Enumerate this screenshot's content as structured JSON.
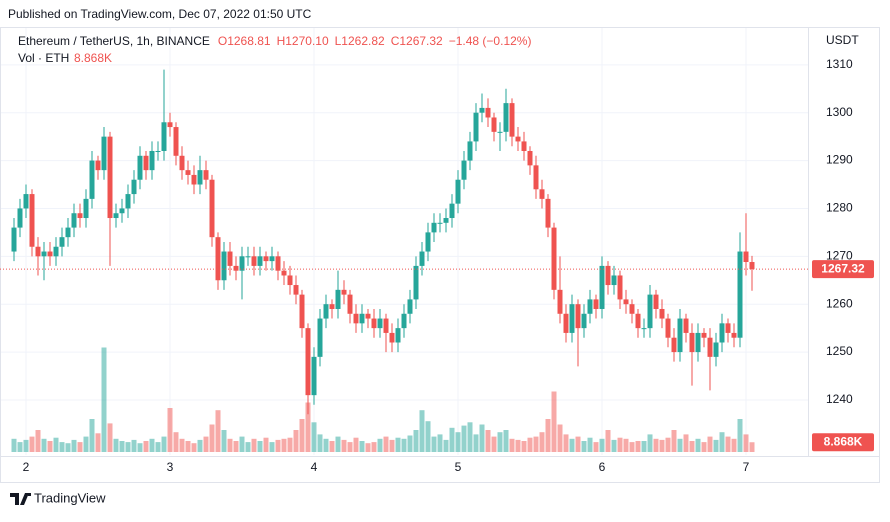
{
  "header": {
    "published": "Published on TradingView.com, Dec 07, 2022 01:50 UTC"
  },
  "chart_data": {
    "type": "candlestick",
    "symbol": "Ethereum / TetherUS, 1h, BINANCE",
    "ohlc_text": [
      "O1268.81",
      "H1270.10",
      "L1262.82",
      "C1267.32",
      "−1.48 (−0.12%)"
    ],
    "volume_title": "Vol · ETH",
    "y_axis_title": "USDT",
    "up_color": "#26a69a",
    "down_color": "#ef5350",
    "grid": true,
    "ylim": [
      1228.5,
      1317.9
    ],
    "yticks": [
      1240,
      1250,
      1260,
      1270,
      1280,
      1290,
      1300,
      1310
    ],
    "volume_lim": [
      0,
      100000
    ],
    "last_price": 1267.32,
    "last_volume": {
      "value": 8868,
      "label": "8.868K"
    },
    "categories": [
      null,
      null,
      "2",
      null,
      null,
      null,
      null,
      null,
      null,
      null,
      null,
      null,
      null,
      null,
      null,
      null,
      null,
      null,
      null,
      null,
      null,
      null,
      null,
      null,
      null,
      null,
      "3",
      null,
      null,
      null,
      null,
      null,
      null,
      null,
      null,
      null,
      null,
      null,
      null,
      null,
      null,
      null,
      null,
      null,
      null,
      null,
      null,
      null,
      null,
      null,
      "4",
      null,
      null,
      null,
      null,
      null,
      null,
      null,
      null,
      null,
      null,
      null,
      null,
      null,
      null,
      null,
      null,
      null,
      null,
      null,
      null,
      null,
      null,
      null,
      "5",
      null,
      null,
      null,
      null,
      null,
      null,
      null,
      null,
      null,
      null,
      null,
      null,
      null,
      null,
      null,
      null,
      null,
      null,
      null,
      null,
      null,
      null,
      null,
      "6",
      null,
      null,
      null,
      null,
      null,
      null,
      null,
      null,
      null,
      null,
      null,
      null,
      null,
      null,
      null,
      null,
      null,
      null,
      null,
      null,
      null,
      null,
      null,
      "7",
      null
    ],
    "open": [
      1271,
      1276,
      1280,
      1283,
      1272,
      1270,
      1271,
      1270,
      1272,
      1274,
      1276,
      1279,
      1278,
      1282,
      1290,
      1288,
      1295,
      1278,
      1279,
      1280,
      1283,
      1286,
      1291,
      1288,
      1292,
      1292,
      1298,
      1297,
      1291,
      1288,
      1287,
      1285,
      1288,
      1286,
      1274,
      1265,
      1271,
      1268,
      1267,
      1270,
      1270,
      1268,
      1270,
      1269,
      1270,
      1267,
      1266,
      1264,
      1262,
      1255,
      1241,
      1249,
      1257,
      1260,
      1259,
      1263,
      1262,
      1258,
      1256,
      1258,
      1257,
      1255,
      1257,
      1254,
      1252,
      1255,
      1258,
      1261,
      1268,
      1271,
      1275,
      1277,
      1277,
      1278,
      1281,
      1286,
      1290,
      1294,
      1300,
      1301,
      1299,
      1296,
      1296,
      1302,
      1295,
      1294,
      1292,
      1289,
      1284,
      1282,
      1276,
      1263,
      1258,
      1254,
      1260,
      1255,
      1258,
      1261,
      1259,
      1268,
      1264,
      1266,
      1261,
      1260,
      1258,
      1255,
      1255,
      1262,
      1259,
      1257,
      1253,
      1250,
      1257,
      1254,
      1250,
      1254,
      1253,
      1249,
      1252,
      1256,
      1254,
      1253,
      1271,
      1268.81
    ],
    "high": [
      1278,
      1282,
      1285,
      1284,
      1274,
      1273,
      1273,
      1274,
      1276,
      1278,
      1281,
      1281,
      1284,
      1292,
      1291,
      1297,
      1296,
      1281,
      1282,
      1285,
      1288,
      1293,
      1292,
      1294,
      1294,
      1309,
      1300,
      1298,
      1293,
      1290,
      1289,
      1291,
      1290,
      1287,
      1275,
      1273,
      1273,
      1270,
      1272,
      1272,
      1272,
      1272,
      1271,
      1272,
      1271,
      1269,
      1268,
      1266,
      1263,
      1256,
      1251,
      1259,
      1262,
      1261,
      1267,
      1265,
      1263,
      1260,
      1260,
      1259,
      1259,
      1259,
      1258,
      1256,
      1257,
      1260,
      1263,
      1270,
      1273,
      1277,
      1279,
      1279,
      1280,
      1283,
      1288,
      1292,
      1296,
      1302,
      1304,
      1303,
      1300,
      1298,
      1305,
      1303,
      1297,
      1296,
      1293,
      1291,
      1286,
      1283,
      1277,
      1270,
      1260,
      1262,
      1261,
      1260,
      1263,
      1262,
      1270,
      1269,
      1268,
      1267,
      1263,
      1261,
      1259,
      1257,
      1264,
      1263,
      1261,
      1258,
      1255,
      1259,
      1258,
      1256,
      1256,
      1255,
      1255,
      1254,
      1258,
      1257,
      1256,
      1275,
      1279,
      1270.1
    ],
    "low": [
      1269,
      1274,
      1278,
      1270,
      1266,
      1265,
      1268,
      1268,
      1270,
      1272,
      1274,
      1276,
      1276,
      1280,
      1286,
      1286,
      1268,
      1276,
      1277,
      1278,
      1281,
      1284,
      1286,
      1286,
      1290,
      1290,
      1295,
      1289,
      1286,
      1285,
      1283,
      1283,
      1284,
      1272,
      1263,
      1263,
      1266,
      1265,
      1261,
      1268,
      1266,
      1266,
      1267,
      1267,
      1265,
      1264,
      1262,
      1260,
      1253,
      1237,
      1239,
      1247,
      1255,
      1257,
      1257,
      1260,
      1256,
      1254,
      1254,
      1255,
      1253,
      1253,
      1250,
      1250,
      1250,
      1253,
      1256,
      1259,
      1266,
      1269,
      1273,
      1275,
      1275,
      1276,
      1279,
      1284,
      1288,
      1292,
      1298,
      1297,
      1294,
      1292,
      1294,
      1293,
      1292,
      1290,
      1287,
      1282,
      1280,
      1274,
      1261,
      1256,
      1252,
      1252,
      1247,
      1253,
      1256,
      1257,
      1257,
      1262,
      1262,
      1259,
      1258,
      1256,
      1253,
      1253,
      1253,
      1257,
      1255,
      1251,
      1248,
      1248,
      1252,
      1243,
      1248,
      1251,
      1242,
      1247,
      1250,
      1252,
      1251,
      1251,
      1266,
      1262.82
    ],
    "close": [
      1276,
      1280,
      1283,
      1272,
      1270,
      1271,
      1270,
      1272,
      1274,
      1276,
      1279,
      1278,
      1282,
      1290,
      1288,
      1295,
      1278,
      1279,
      1280,
      1283,
      1286,
      1291,
      1288,
      1292,
      1292,
      1298,
      1297,
      1291,
      1288,
      1287,
      1285,
      1288,
      1286,
      1274,
      1265,
      1271,
      1268,
      1267,
      1270,
      1270,
      1268,
      1270,
      1269,
      1270,
      1267,
      1266,
      1264,
      1262,
      1255,
      1241,
      1249,
      1257,
      1260,
      1259,
      1263,
      1262,
      1258,
      1256,
      1258,
      1257,
      1255,
      1257,
      1254,
      1252,
      1255,
      1258,
      1261,
      1268,
      1271,
      1275,
      1277,
      1277,
      1278,
      1281,
      1286,
      1290,
      1294,
      1300,
      1301,
      1299,
      1296,
      1296,
      1302,
      1295,
      1294,
      1292,
      1289,
      1284,
      1282,
      1276,
      1263,
      1258,
      1254,
      1260,
      1255,
      1258,
      1261,
      1259,
      1268,
      1264,
      1266,
      1261,
      1260,
      1258,
      1255,
      1255,
      1262,
      1259,
      1257,
      1253,
      1250,
      1257,
      1254,
      1250,
      1254,
      1253,
      1249,
      1252,
      1256,
      1254,
      1253,
      1271,
      1268.81,
      1267.32
    ],
    "volume": [
      12000,
      9000,
      11000,
      14000,
      20000,
      12000,
      10000,
      13000,
      9000,
      8000,
      11000,
      9000,
      14000,
      30000,
      17000,
      95000,
      26000,
      12000,
      10000,
      9000,
      11000,
      8000,
      10000,
      12000,
      9000,
      14000,
      40000,
      18000,
      12000,
      10000,
      8000,
      11000,
      14000,
      25000,
      38000,
      20000,
      12000,
      10000,
      14000,
      9000,
      12000,
      10000,
      13000,
      9000,
      11000,
      12000,
      13000,
      20000,
      30000,
      45000,
      27000,
      16000,
      12000,
      10000,
      14000,
      11000,
      9000,
      13000,
      10000,
      8000,
      9000,
      12000,
      14000,
      11000,
      13000,
      12000,
      15000,
      20000,
      38000,
      28000,
      14000,
      16000,
      11000,
      22000,
      18000,
      24000,
      27000,
      16000,
      25000,
      20000,
      14000,
      18000,
      20000,
      12000,
      11000,
      10000,
      13000,
      14000,
      18000,
      30000,
      55000,
      25000,
      16000,
      12000,
      14000,
      10000,
      13000,
      9000,
      12000,
      20000,
      11000,
      13000,
      12000,
      9000,
      10000,
      10000,
      16000,
      12000,
      11000,
      13000,
      20000,
      12000,
      16000,
      10000,
      12000,
      9000,
      14000,
      11000,
      18000,
      14000,
      12000,
      30000,
      16000,
      8868
    ]
  },
  "footer": {
    "brand": "TradingView"
  }
}
